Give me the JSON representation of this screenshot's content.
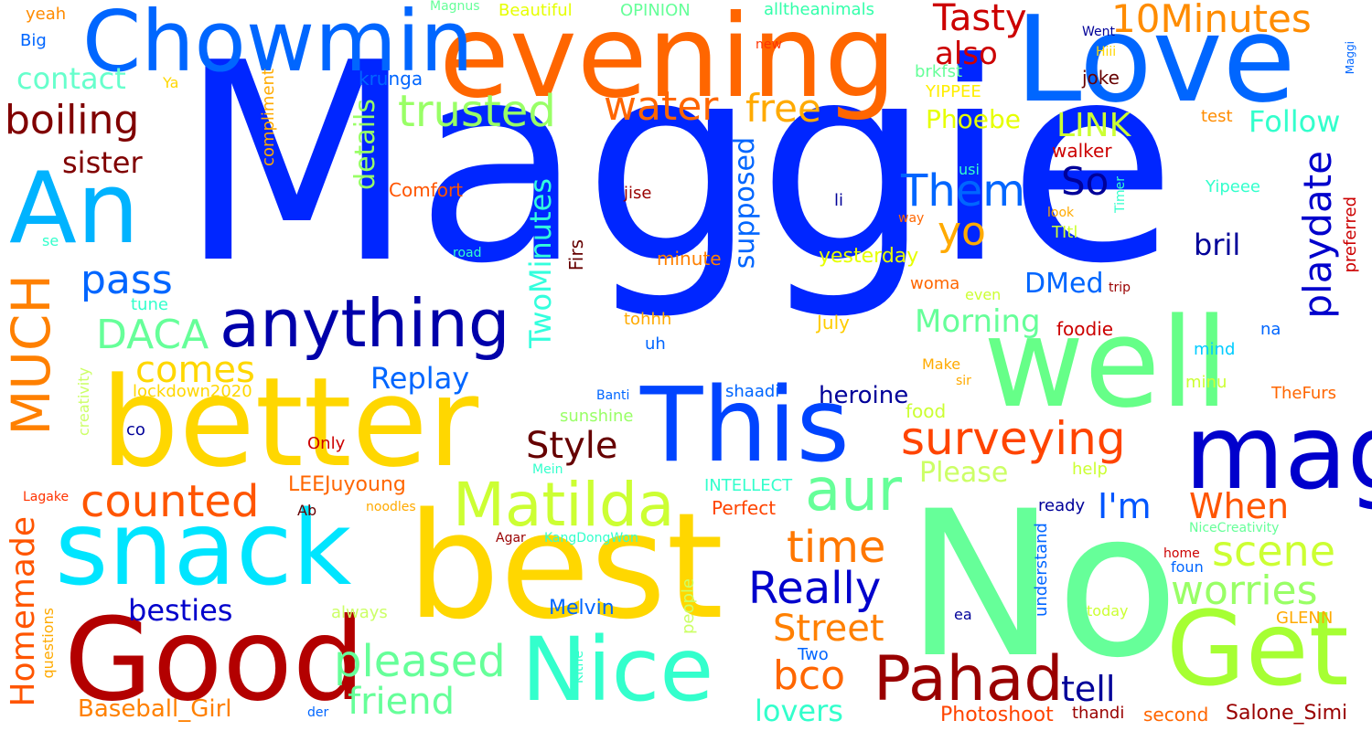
{
  "words": [
    {
      "text": "Maggie",
      "color": "#0026ff"
    },
    {
      "text": "No",
      "color": "#66ff99"
    },
    {
      "text": "best",
      "color": "#ffd700"
    },
    {
      "text": "Love",
      "color": "#0066ff"
    },
    {
      "text": "evening",
      "color": "#ff6600"
    },
    {
      "text": "better",
      "color": "#ffd700"
    },
    {
      "text": "well",
      "color": "#66ff88"
    },
    {
      "text": "Good",
      "color": "#b30000"
    },
    {
      "text": "snack",
      "color": "#00e5ff"
    },
    {
      "text": "This",
      "color": "#0044ff"
    },
    {
      "text": "mag",
      "color": "#0000cc"
    },
    {
      "text": "Get",
      "color": "#a6ff33"
    },
    {
      "text": "Chowmin",
      "color": "#0066ff"
    },
    {
      "text": "Nice",
      "color": "#33ffcc"
    },
    {
      "text": "An",
      "color": "#00b3ff"
    },
    {
      "text": "MUCH",
      "color": "#ff8000"
    },
    {
      "text": "anything",
      "color": "#0000aa"
    },
    {
      "text": "Matilda",
      "color": "#ccff33"
    },
    {
      "text": "Pahad",
      "color": "#990000"
    },
    {
      "text": "aur",
      "color": "#66ff99"
    },
    {
      "text": "surveying",
      "color": "#ff4400"
    },
    {
      "text": "10Minutes",
      "color": "#ff8c00"
    },
    {
      "text": "trusted",
      "color": "#99ff66"
    },
    {
      "text": "Them",
      "color": "#0066ff"
    },
    {
      "text": "Really",
      "color": "#0000cc"
    },
    {
      "text": "counted",
      "color": "#ff5500"
    },
    {
      "text": "Homemade",
      "color": "#ff5500"
    },
    {
      "text": "pleased",
      "color": "#66ff99"
    },
    {
      "text": "time",
      "color": "#ff7700"
    },
    {
      "text": "playdate",
      "color": "#0000cc"
    },
    {
      "text": "worries",
      "color": "#99ff66"
    },
    {
      "text": "scene",
      "color": "#ccff33"
    },
    {
      "text": "Street",
      "color": "#ff8000"
    },
    {
      "text": "bco",
      "color": "#ff6600"
    },
    {
      "text": "friend",
      "color": "#66ff99"
    },
    {
      "text": "water",
      "color": "#ff6600"
    },
    {
      "text": "free",
      "color": "#ffaa00"
    },
    {
      "text": "Tasty",
      "color": "#cc0000"
    },
    {
      "text": "boiling",
      "color": "#800000"
    },
    {
      "text": "yo",
      "color": "#ffaa00"
    },
    {
      "text": "So",
      "color": "#000099"
    },
    {
      "text": "DACA",
      "color": "#66ff99"
    },
    {
      "text": "pass",
      "color": "#0066ff"
    },
    {
      "text": "comes",
      "color": "#ffd700"
    },
    {
      "text": "Style",
      "color": "#660000"
    },
    {
      "text": "TwoMinutes",
      "color": "#33ffdd"
    },
    {
      "text": "LINK",
      "color": "#ccff33"
    },
    {
      "text": "also",
      "color": "#cc0000"
    },
    {
      "text": "sister",
      "color": "#800000"
    },
    {
      "text": "Follow",
      "color": "#33ffcc"
    },
    {
      "text": "I'm",
      "color": "#0055ff"
    },
    {
      "text": "When",
      "color": "#ff5500"
    },
    {
      "text": "supposed",
      "color": "#0066ff"
    },
    {
      "text": "besties",
      "color": "#0000cc"
    },
    {
      "text": "Replay",
      "color": "#0066ff"
    },
    {
      "text": "Morning",
      "color": "#66ff99"
    },
    {
      "text": "lovers",
      "color": "#33ffcc"
    },
    {
      "text": "tell",
      "color": "#000099"
    },
    {
      "text": "details",
      "color": "#99ff66"
    },
    {
      "text": "DMed",
      "color": "#0066ff"
    },
    {
      "text": "bril",
      "color": "#000099"
    },
    {
      "text": "heroine",
      "color": "#000099"
    },
    {
      "text": "Please",
      "color": "#ccff66"
    },
    {
      "text": "Phoebe",
      "color": "#e6ff00"
    },
    {
      "text": "contact",
      "color": "#66ffcc"
    },
    {
      "text": "Baseball_Girl",
      "color": "#ff8000"
    },
    {
      "text": "Photoshoot",
      "color": "#ff4400"
    },
    {
      "text": "Salone_Simi",
      "color": "#990000"
    },
    {
      "text": "Melvin",
      "color": "#0066ff"
    },
    {
      "text": "LEEJuyoung",
      "color": "#ff6600"
    },
    {
      "text": "yesterday",
      "color": "#e6ff00"
    },
    {
      "text": "lockdown2020",
      "color": "#ffd700"
    },
    {
      "text": "OPINION",
      "color": "#66ff99"
    },
    {
      "text": "Beautiful",
      "color": "#e6ff00"
    },
    {
      "text": "alltheanimals",
      "color": "#33ffaa"
    },
    {
      "text": "Comfort",
      "color": "#ff5500"
    },
    {
      "text": "krunga",
      "color": "#0066ff"
    },
    {
      "text": "compliment",
      "color": "#ffaa00"
    },
    {
      "text": "Firs",
      "color": "#660000"
    },
    {
      "text": "minute",
      "color": "#ff8000"
    },
    {
      "text": "walker",
      "color": "#cc0000"
    },
    {
      "text": "YIPPEE",
      "color": "#ffee00"
    },
    {
      "text": "brkfst",
      "color": "#66ff99"
    },
    {
      "text": "joke",
      "color": "#660000"
    },
    {
      "text": "test",
      "color": "#ff8c00"
    },
    {
      "text": "Yipeee",
      "color": "#33ffcc"
    },
    {
      "text": "TItl",
      "color": "#ccff33"
    },
    {
      "text": "preferred",
      "color": "#cc0000"
    },
    {
      "text": "TheFurs",
      "color": "#ff6600"
    },
    {
      "text": "GLENN",
      "color": "#ffaa00"
    },
    {
      "text": "foodie",
      "color": "#cc0000"
    },
    {
      "text": "Make",
      "color": "#ffaa00"
    },
    {
      "text": "food",
      "color": "#ccff33"
    },
    {
      "text": "woma",
      "color": "#ff6600"
    },
    {
      "text": "even",
      "color": "#ccff33"
    },
    {
      "text": "July",
      "color": "#ffcc00"
    },
    {
      "text": "shaadi",
      "color": "#0066ff"
    },
    {
      "text": "mind",
      "color": "#00ccff"
    },
    {
      "text": "minu",
      "color": "#ccff33"
    },
    {
      "text": "na",
      "color": "#0066ff"
    },
    {
      "text": "help",
      "color": "#ccff33"
    },
    {
      "text": "ready",
      "color": "#000099"
    },
    {
      "text": "understand",
      "color": "#0066ff"
    },
    {
      "text": "Yeah",
      "color": "#ff8c00"
    },
    {
      "text": "yeah",
      "color": "#ff8c00"
    },
    {
      "text": "Big",
      "color": "#0066ff"
    },
    {
      "text": "Ya",
      "color": "#ffd700"
    },
    {
      "text": "se",
      "color": "#33ffcc"
    },
    {
      "text": "tune",
      "color": "#33ffcc"
    },
    {
      "text": "creativity",
      "color": "#ccff66"
    },
    {
      "text": "co",
      "color": "#000099"
    },
    {
      "text": "Lagake",
      "color": "#ff3300"
    },
    {
      "text": "questions",
      "color": "#ffaa00"
    },
    {
      "text": "Ab",
      "color": "#660000"
    },
    {
      "text": "noodles",
      "color": "#ffaa00"
    },
    {
      "text": "Only",
      "color": "#cc0000"
    },
    {
      "text": "Agar",
      "color": "#990000"
    },
    {
      "text": "KangDongWon",
      "color": "#33ffcc"
    },
    {
      "text": "Perfect",
      "color": "#ff4400"
    },
    {
      "text": "INTELLECT",
      "color": "#33ffcc"
    },
    {
      "text": "always",
      "color": "#ccff66"
    },
    {
      "text": "people",
      "color": "#ccff66"
    },
    {
      "text": "Kitne",
      "color": "#33ffcc"
    },
    {
      "text": "Two",
      "color": "#0066ff"
    },
    {
      "text": "der",
      "color": "#0066ff"
    },
    {
      "text": "thandi",
      "color": "#990000"
    },
    {
      "text": "second",
      "color": "#ff6600"
    },
    {
      "text": "today",
      "color": "#ccff33"
    },
    {
      "text": "ea",
      "color": "#000099"
    },
    {
      "text": "foun",
      "color": "#0066ff"
    },
    {
      "text": "home",
      "color": "#cc0000"
    },
    {
      "text": "NiceCreativity",
      "color": "#66ff99"
    },
    {
      "text": "sunshine",
      "color": "#99ff66"
    },
    {
      "text": "Banti",
      "color": "#0066ff"
    },
    {
      "text": "Mein",
      "color": "#33ffcc"
    },
    {
      "text": "uh",
      "color": "#0066ff"
    },
    {
      "text": "tohhh",
      "color": "#ffaa00"
    },
    {
      "text": "road",
      "color": "#33ffcc"
    },
    {
      "text": "li",
      "color": "#000099"
    },
    {
      "text": "jise",
      "color": "#990000"
    },
    {
      "text": "usi",
      "color": "#33ffcc"
    },
    {
      "text": "way",
      "color": "#ff6600"
    },
    {
      "text": "look",
      "color": "#ffaa00"
    },
    {
      "text": "Timer",
      "color": "#33ffcc"
    },
    {
      "text": "trip",
      "color": "#990000"
    },
    {
      "text": "sir",
      "color": "#ffaa00"
    },
    {
      "text": "Magnus",
      "color": "#66ff99"
    },
    {
      "text": "new",
      "color": "#ff3300"
    },
    {
      "text": "Went",
      "color": "#000099"
    },
    {
      "text": "Hiii",
      "color": "#ffd700"
    },
    {
      "text": "Maggi",
      "color": "#0066ff"
    }
  ]
}
